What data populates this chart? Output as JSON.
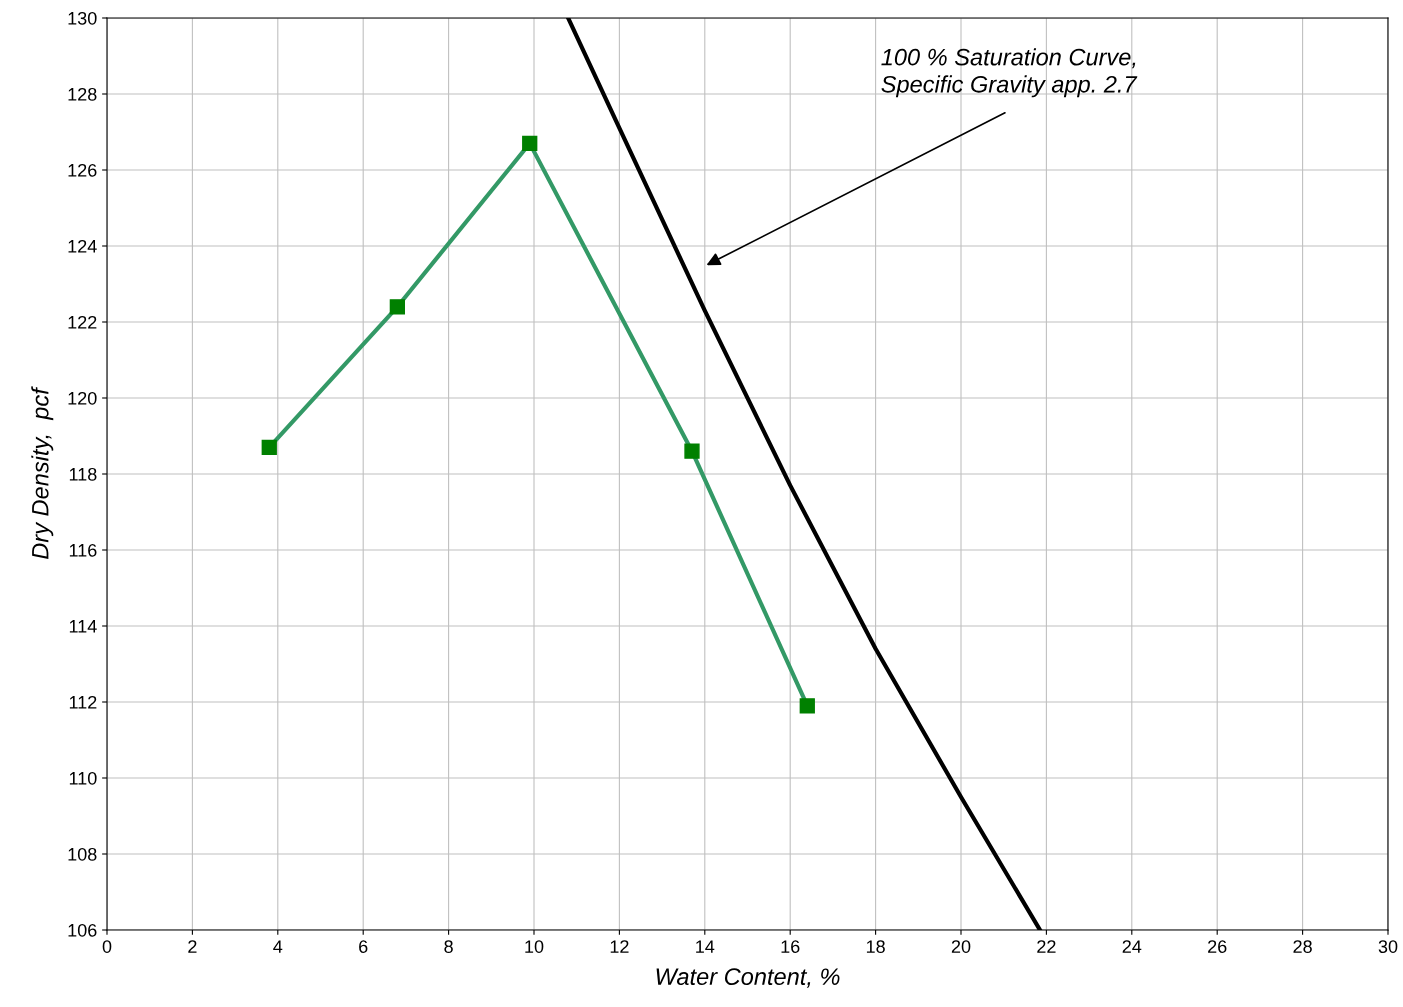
{
  "chart_data": {
    "type": "line",
    "xlabel": "Water Content, %",
    "ylabel": "Dry Density,  pcf",
    "xlim": [
      0,
      30
    ],
    "xticks": [
      0,
      2,
      4,
      6,
      8,
      10,
      12,
      14,
      16,
      18,
      20,
      22,
      24,
      26,
      28,
      30
    ],
    "ylim": [
      106,
      130
    ],
    "yticks": [
      106,
      108,
      110,
      112,
      114,
      116,
      118,
      120,
      122,
      124,
      126,
      128,
      130
    ],
    "grid": true,
    "legend": false,
    "series": [
      {
        "color": "#339966",
        "marker": "square",
        "x": [
          3.8,
          6.8,
          9.9,
          13.7,
          16.4
        ],
        "values": [
          118.7,
          122.4,
          126.7,
          118.6,
          111.9
        ]
      },
      {
        "color": "#000000",
        "marker": "none",
        "x": [
          10.8,
          12,
          14,
          16,
          18,
          20,
          21.85
        ],
        "values": [
          130,
          127.1,
          122.3,
          117.7,
          113.4,
          109.5,
          106
        ]
      }
    ],
    "annotations": [
      "100 % Saturation Curve,\nSpecific Gravity app. 2.7"
    ]
  }
}
